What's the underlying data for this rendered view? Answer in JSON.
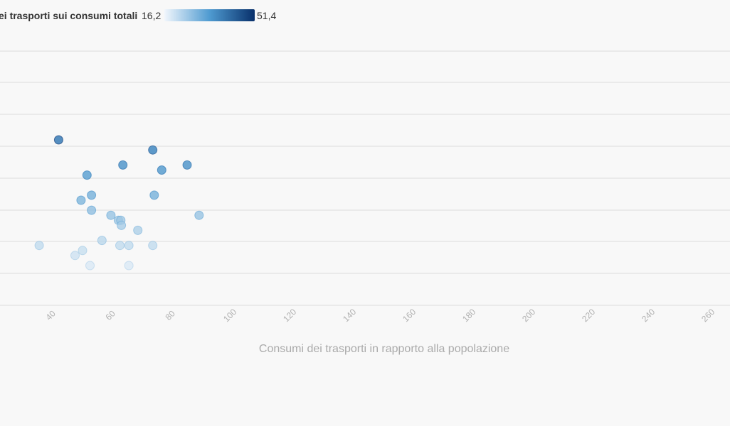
{
  "chart_data": {
    "type": "scatter",
    "title": "",
    "xlabel": "Consumi dei trasporti in rapporto alla popolazione",
    "ylabel": "",
    "xlim": [
      30,
      265
    ],
    "x_ticks": [
      40,
      60,
      80,
      100,
      120,
      140,
      160,
      180,
      200,
      220,
      240,
      260
    ],
    "grid": "horizontal",
    "legend": {
      "title": "ei trasporti sui consumi totali",
      "min_label": "16,2",
      "max_label": "51,4",
      "min": 16.2,
      "max": 51.4,
      "color_low": "#f1f6fc",
      "color_high": "#08306b",
      "placement": "top-left"
    },
    "points": [
      {
        "x": 42,
        "c": 45
      },
      {
        "x": 73.5,
        "c": 43
      },
      {
        "x": 63.5,
        "c": 40
      },
      {
        "x": 76.5,
        "c": 39
      },
      {
        "x": 85,
        "c": 40
      },
      {
        "x": 51.5,
        "c": 38
      },
      {
        "x": 53,
        "c": 34
      },
      {
        "x": 49.5,
        "c": 33
      },
      {
        "x": 74,
        "c": 34
      },
      {
        "x": 53,
        "c": 31
      },
      {
        "x": 59.5,
        "c": 30
      },
      {
        "x": 62,
        "c": 29
      },
      {
        "x": 62.8,
        "c": 29
      },
      {
        "x": 63,
        "c": 28
      },
      {
        "x": 68.5,
        "c": 27
      },
      {
        "x": 89,
        "c": 30
      },
      {
        "x": 35.5,
        "c": 24
      },
      {
        "x": 56.5,
        "c": 25
      },
      {
        "x": 65.5,
        "c": 24
      },
      {
        "x": 50,
        "c": 23
      },
      {
        "x": 62.5,
        "c": 24
      },
      {
        "x": 73.5,
        "c": 24
      },
      {
        "x": 47.5,
        "c": 22
      },
      {
        "x": 52.5,
        "c": 20
      },
      {
        "x": 65.5,
        "c": 20
      }
    ]
  }
}
